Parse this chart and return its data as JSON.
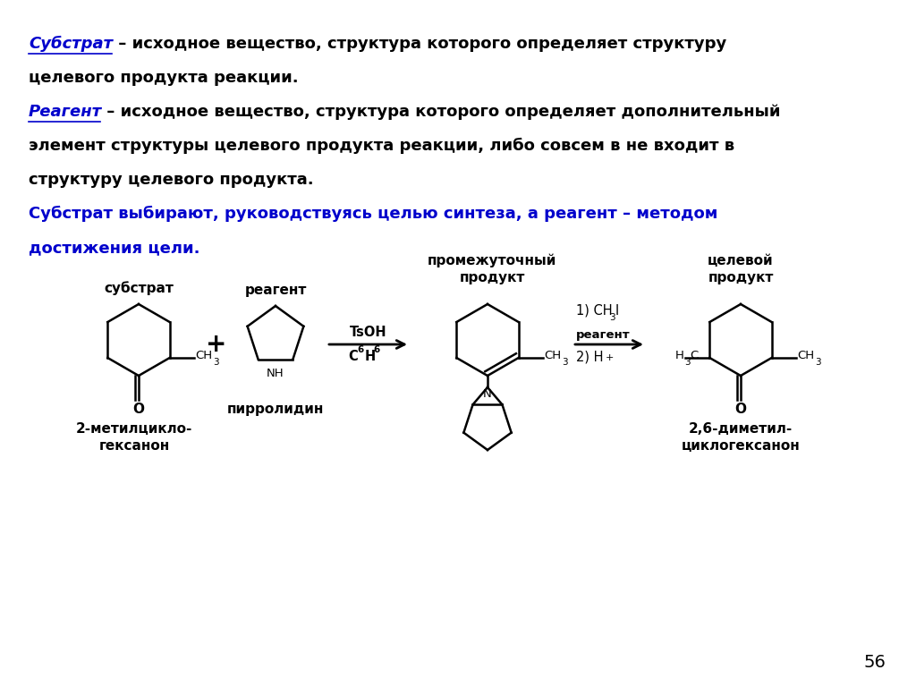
{
  "bg_color": "#ffffff",
  "black": "#000000",
  "blue": "#0000cc",
  "page_number": "56",
  "line1_word": "Субстрат",
  "line1_rest": " – исходное вещество, структура которого определяет структуру",
  "line2": "целевого продукта реакции.",
  "line3_word": "Реагент",
  "line3_rest": " – исходное вещество, структура которого определяет дополнительный",
  "line4": "элемент структуры целевого продукта реакции, либо совсем в не входит в",
  "line5": "структуру целевого продукта.",
  "line6": "Субстрат выбирают, руководствуясь целью синтеза, а реагент – методом",
  "line7": "достижения цели.",
  "lbl_substrate": "субстрат",
  "lbl_reagent": "реагент",
  "lbl_pyrrolidine": "пирролидин",
  "lbl_intermediate": "промежуточный\nпродукт",
  "lbl_target": "целевой\nпродукт",
  "lbl_reagent2": "реагент",
  "lbl_substrate_name": "2-метилцикло-\nгексанон",
  "lbl_target_name": "2,6-диметил-\nциклогексанон",
  "tsoh": "TsOH",
  "c6h6_C": "C",
  "c6h6_sub": "6",
  "c6h6_H": "H",
  "c6h6_sub2": "6",
  "arrow2_line1a": "1) CH",
  "arrow2_line1b": "3",
  "arrow2_line1c": "I",
  "arrow2_line2a": "2) H",
  "arrow2_line2b": "+"
}
